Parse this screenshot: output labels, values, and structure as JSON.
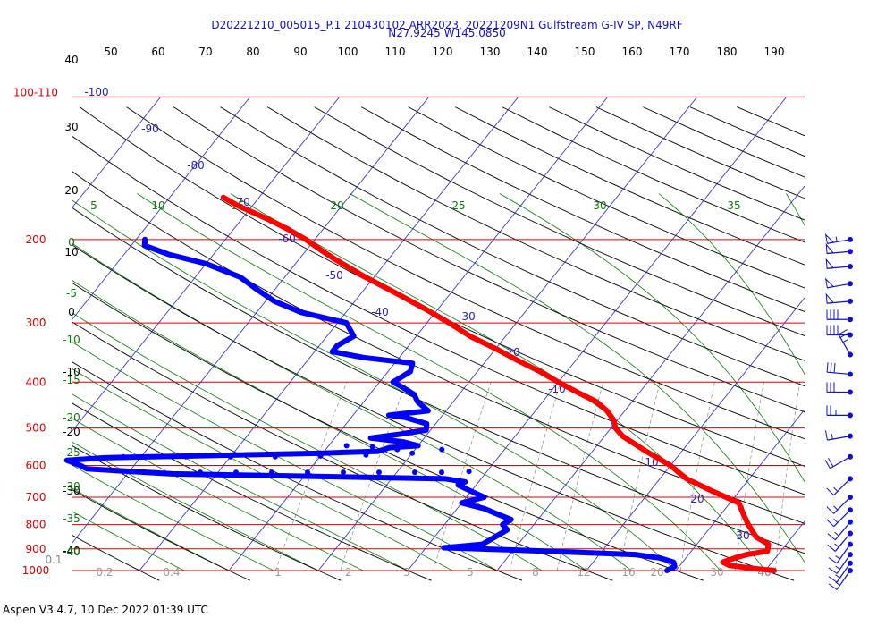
{
  "header": {
    "line1": "D20221210_005015_P.1 210430102 ARR2023, 20221209N1 Gulfstream G-IV SP, N49RF",
    "line2": "N27.9245 W145.0850"
  },
  "footer": {
    "text": "Aspen V3.4.7, 10 Dec 2022  01:39 UTC"
  },
  "colors": {
    "isobar": "#dd0000",
    "isotherm": "#2222bb",
    "dry_adiabat": "#000000",
    "moist_adiabat": "#0a7a0a",
    "mixing_ratio": "#888888",
    "temperature": "#ff0000",
    "dewpoint": "#0000ff",
    "wind_barb": "#1010cc"
  },
  "chart_data": {
    "type": "skew-t",
    "title": "",
    "pressure_levels": [
      {
        "p": 1000,
        "label": "1000"
      },
      {
        "p": 900,
        "label": "900"
      },
      {
        "p": 800,
        "label": "800"
      },
      {
        "p": 700,
        "label": "700"
      },
      {
        "p": 600,
        "label": "600"
      },
      {
        "p": 500,
        "label": "500"
      },
      {
        "p": 400,
        "label": "400"
      },
      {
        "p": 300,
        "label": "300"
      },
      {
        "p": 200,
        "label": "200"
      },
      {
        "p": 100,
        "label": "100-110"
      }
    ],
    "top_axis_labels": [
      "50",
      "60",
      "70",
      "80",
      "90",
      "100",
      "110",
      "120",
      "130",
      "140",
      "150",
      "160",
      "170",
      "180",
      "190"
    ],
    "height_labels": [
      "40",
      "30",
      "20",
      "10",
      "0",
      "-10",
      "-20",
      "-30",
      "-40"
    ],
    "height_sublabel": "0.1",
    "isotherm_labels": [
      "-100",
      "-90",
      "-80",
      "-70",
      "-60",
      "-50",
      "-40",
      "-30",
      "-20",
      "-10",
      "0",
      "10",
      "20",
      "30",
      "40"
    ],
    "moist_top_labels": [
      "5",
      "10",
      "15",
      "20",
      "25",
      "30",
      "35"
    ],
    "moist_left_labels": [
      "0",
      "-5",
      "-10",
      "-15",
      "-20",
      "-25",
      "-30",
      "-35",
      "-40"
    ],
    "mixing_ratio_labels": [
      "0.2",
      "0.4",
      "1",
      "2",
      "3",
      "5",
      "8",
      "12",
      "16",
      "20",
      "30",
      "40"
    ],
    "temperature": [
      [
        1000,
        21.0
      ],
      [
        990,
        18.5
      ],
      [
        975,
        15.5
      ],
      [
        960,
        14.5
      ],
      [
        940,
        15.5
      ],
      [
        925,
        16.5
      ],
      [
        910,
        18.5
      ],
      [
        880,
        18.0
      ],
      [
        850,
        16.0
      ],
      [
        800,
        14.0
      ],
      [
        760,
        12.5
      ],
      [
        720,
        11.0
      ],
      [
        680,
        7.0
      ],
      [
        640,
        3.0
      ],
      [
        620,
        1.5
      ],
      [
        600,
        0.0
      ],
      [
        560,
        -4.0
      ],
      [
        520,
        -8.0
      ],
      [
        500,
        -9.5
      ],
      [
        480,
        -10.5
      ],
      [
        460,
        -12.0
      ],
      [
        440,
        -14.0
      ],
      [
        420,
        -17.0
      ],
      [
        400,
        -20.0
      ],
      [
        380,
        -23.0
      ],
      [
        360,
        -26.5
      ],
      [
        340,
        -30.0
      ],
      [
        320,
        -34.0
      ],
      [
        300,
        -37.5
      ],
      [
        280,
        -41.5
      ],
      [
        260,
        -46.0
      ],
      [
        240,
        -51.0
      ],
      [
        220,
        -56.0
      ],
      [
        210,
        -58.5
      ],
      [
        200,
        -61.0
      ],
      [
        190,
        -64.0
      ],
      [
        180,
        -67.5
      ],
      [
        170,
        -71.5
      ],
      [
        163,
        -74.0
      ]
    ],
    "dewpoint": [
      [
        1000,
        9.0
      ],
      [
        980,
        9.5
      ],
      [
        960,
        9.0
      ],
      [
        940,
        7.0
      ],
      [
        925,
        4.0
      ],
      [
        905,
        -10.0
      ],
      [
        895,
        -18.0
      ],
      [
        880,
        -14.0
      ],
      [
        860,
        -13.5
      ],
      [
        840,
        -13.0
      ],
      [
        820,
        -12.5
      ],
      [
        800,
        -13.5
      ],
      [
        780,
        -13.0
      ],
      [
        760,
        -15.0
      ],
      [
        740,
        -17.0
      ],
      [
        720,
        -20.0
      ],
      [
        700,
        -18.0
      ],
      [
        680,
        -20.0
      ],
      [
        660,
        -22.0
      ],
      [
        650,
        -21.5
      ],
      [
        640,
        -24.0
      ],
      [
        625,
        -55.0
      ],
      [
        610,
        -65.0
      ],
      [
        600,
        -66.0
      ],
      [
        585,
        -68.0
      ],
      [
        578,
        -64.0
      ],
      [
        565,
        -40.0
      ],
      [
        560,
        -34.0
      ],
      [
        550,
        -33.0
      ],
      [
        545,
        -30.0
      ],
      [
        535,
        -32.0
      ],
      [
        525,
        -36.0
      ],
      [
        515,
        -33.0
      ],
      [
        505,
        -30.5
      ],
      [
        490,
        -31.0
      ],
      [
        475,
        -34.0
      ],
      [
        470,
        -36.0
      ],
      [
        460,
        -32.0
      ],
      [
        440,
        -34.0
      ],
      [
        425,
        -35.0
      ],
      [
        410,
        -37.0
      ],
      [
        400,
        -38.5
      ],
      [
        380,
        -37.5
      ],
      [
        365,
        -38.0
      ],
      [
        355,
        -44.0
      ],
      [
        345,
        -48.0
      ],
      [
        335,
        -48.0
      ],
      [
        320,
        -47.0
      ],
      [
        300,
        -49.0
      ],
      [
        285,
        -55.0
      ],
      [
        270,
        -59.0
      ],
      [
        255,
        -62.0
      ],
      [
        240,
        -65.0
      ],
      [
        225,
        -70.0
      ],
      [
        215,
        -75.0
      ],
      [
        206,
        -78.5
      ],
      [
        200,
        -79.0
      ]
    ],
    "dewpoint_dotted": [
      [
        575,
        -62.0
      ],
      [
        575,
        -55.0
      ],
      [
        575,
        -50.0
      ],
      [
        575,
        -45.0
      ],
      [
        573,
        -40.0
      ],
      [
        570,
        -35.0
      ],
      [
        565,
        -30.0
      ],
      [
        555,
        -27.0
      ],
      [
        555,
        -32.0
      ],
      [
        548,
        -35.0
      ],
      [
        545,
        -38.0
      ],
      [
        620,
        -52.0
      ],
      [
        620,
        -48.0
      ],
      [
        620,
        -44.0
      ],
      [
        620,
        -40.0
      ],
      [
        620,
        -36.0
      ],
      [
        620,
        -32.0
      ],
      [
        620,
        -28.0
      ],
      [
        620,
        -25.0
      ],
      [
        618,
        -22.0
      ]
    ],
    "wind_barbs": [
      {
        "p": 1000,
        "speed_kt": 15,
        "dir_deg": 215
      },
      {
        "p": 965,
        "speed_kt": 15,
        "dir_deg": 215
      },
      {
        "p": 925,
        "speed_kt": 15,
        "dir_deg": 215
      },
      {
        "p": 880,
        "speed_kt": 15,
        "dir_deg": 215
      },
      {
        "p": 835,
        "speed_kt": 15,
        "dir_deg": 220
      },
      {
        "p": 790,
        "speed_kt": 15,
        "dir_deg": 220
      },
      {
        "p": 745,
        "speed_kt": 15,
        "dir_deg": 225
      },
      {
        "p": 700,
        "speed_kt": 15,
        "dir_deg": 225
      },
      {
        "p": 640,
        "speed_kt": 15,
        "dir_deg": 225
      },
      {
        "p": 575,
        "speed_kt": 20,
        "dir_deg": 240
      },
      {
        "p": 520,
        "speed_kt": 15,
        "dir_deg": 260
      },
      {
        "p": 470,
        "speed_kt": 25,
        "dir_deg": 270
      },
      {
        "p": 420,
        "speed_kt": 30,
        "dir_deg": 270
      },
      {
        "p": 385,
        "speed_kt": 30,
        "dir_deg": 275
      },
      {
        "p": 350,
        "speed_kt": 25,
        "dir_deg": 330
      },
      {
        "p": 318,
        "speed_kt": 40,
        "dir_deg": 270
      },
      {
        "p": 295,
        "speed_kt": 40,
        "dir_deg": 270
      },
      {
        "p": 270,
        "speed_kt": 50,
        "dir_deg": 265
      },
      {
        "p": 248,
        "speed_kt": 50,
        "dir_deg": 260
      },
      {
        "p": 228,
        "speed_kt": 50,
        "dir_deg": 265
      },
      {
        "p": 212,
        "speed_kt": 50,
        "dir_deg": 265
      },
      {
        "p": 200,
        "speed_kt": 55,
        "dir_deg": 260
      }
    ]
  }
}
